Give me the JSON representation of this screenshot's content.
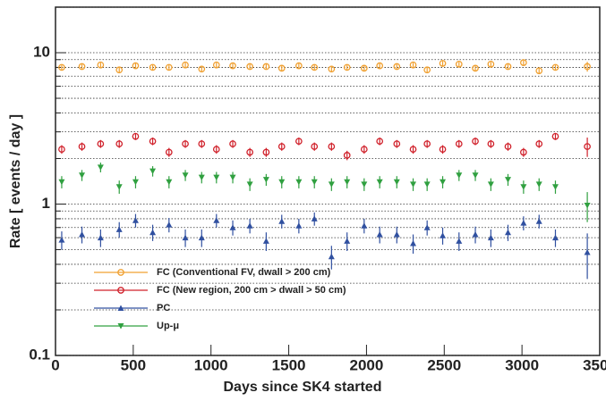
{
  "chart_data": {
    "type": "scatter",
    "x_label": "Days since SK4 started",
    "y_label": "Rate [ events / day ]",
    "log_y": true,
    "grid": true,
    "xlim": [
      0,
      3500
    ],
    "xticks": [
      0,
      500,
      1000,
      1500,
      2000,
      2500,
      3000,
      3500
    ],
    "ylim": [
      0.1,
      20
    ],
    "yticks": [
      0.1,
      1,
      10
    ],
    "minor_yticks": [
      0.2,
      0.3,
      0.4,
      0.5,
      0.6,
      0.7,
      0.8,
      0.9,
      2,
      3,
      4,
      5,
      6,
      7,
      8,
      9,
      20
    ],
    "x": [
      40,
      170,
      290,
      410,
      515,
      625,
      730,
      835,
      940,
      1035,
      1140,
      1250,
      1355,
      1455,
      1565,
      1665,
      1775,
      1875,
      1985,
      2085,
      2195,
      2300,
      2390,
      2490,
      2595,
      2700,
      2800,
      2910,
      3010,
      3110,
      3215,
      3420
    ],
    "series": [
      {
        "name": "FC (Conventional FV, dwall > 200 cm)",
        "color": "#f0a030",
        "marker": "circle-open",
        "values": [
          8.0,
          8.1,
          8.3,
          7.7,
          8.2,
          8.0,
          8.0,
          8.3,
          7.8,
          8.3,
          8.2,
          8.1,
          8.1,
          7.9,
          8.2,
          8.0,
          7.8,
          8.0,
          7.9,
          8.2,
          8.1,
          8.3,
          7.7,
          8.5,
          8.4,
          7.9,
          8.4,
          8.1,
          8.6,
          7.6,
          8.0,
          8.1
        ],
        "errors": [
          0.3,
          0.3,
          0.3,
          0.3,
          0.3,
          0.3,
          0.3,
          0.3,
          0.3,
          0.3,
          0.3,
          0.3,
          0.3,
          0.3,
          0.3,
          0.3,
          0.3,
          0.3,
          0.3,
          0.3,
          0.3,
          0.3,
          0.3,
          0.3,
          0.3,
          0.3,
          0.3,
          0.3,
          0.3,
          0.3,
          0.3,
          0.6
        ]
      },
      {
        "name": "FC (New region, 200 cm > dwall > 50 cm)",
        "color": "#d0202a",
        "marker": "circle-open",
        "values": [
          2.3,
          2.4,
          2.5,
          2.5,
          2.8,
          2.6,
          2.2,
          2.5,
          2.5,
          2.3,
          2.5,
          2.2,
          2.2,
          2.4,
          2.6,
          2.4,
          2.4,
          2.1,
          2.3,
          2.6,
          2.5,
          2.3,
          2.5,
          2.3,
          2.5,
          2.6,
          2.5,
          2.4,
          2.2,
          2.5,
          2.8,
          2.4
        ],
        "errors": [
          0.15,
          0.15,
          0.15,
          0.15,
          0.15,
          0.15,
          0.15,
          0.15,
          0.15,
          0.15,
          0.15,
          0.15,
          0.15,
          0.15,
          0.15,
          0.15,
          0.15,
          0.15,
          0.15,
          0.15,
          0.15,
          0.15,
          0.15,
          0.15,
          0.15,
          0.15,
          0.15,
          0.15,
          0.15,
          0.15,
          0.15,
          0.35
        ]
      },
      {
        "name": "PC",
        "color": "#3050a0",
        "marker": "triangle-up",
        "values": [
          0.58,
          0.63,
          0.6,
          0.68,
          0.78,
          0.65,
          0.73,
          0.6,
          0.6,
          0.78,
          0.7,
          0.72,
          0.57,
          0.77,
          0.72,
          0.8,
          0.45,
          0.57,
          0.72,
          0.63,
          0.63,
          0.55,
          0.7,
          0.62,
          0.57,
          0.63,
          0.6,
          0.65,
          0.75,
          0.77,
          0.6,
          0.48
        ],
        "errors": [
          0.08,
          0.08,
          0.08,
          0.08,
          0.08,
          0.08,
          0.08,
          0.08,
          0.08,
          0.08,
          0.08,
          0.08,
          0.08,
          0.08,
          0.08,
          0.08,
          0.08,
          0.08,
          0.08,
          0.08,
          0.08,
          0.08,
          0.08,
          0.08,
          0.08,
          0.08,
          0.08,
          0.08,
          0.08,
          0.08,
          0.08,
          0.16
        ]
      },
      {
        "name": "Up-μ",
        "color": "#30a040",
        "marker": "triangle-down",
        "values": [
          1.4,
          1.55,
          1.75,
          1.3,
          1.4,
          1.65,
          1.4,
          1.55,
          1.5,
          1.5,
          1.5,
          1.35,
          1.45,
          1.4,
          1.4,
          1.4,
          1.35,
          1.4,
          1.35,
          1.4,
          1.4,
          1.35,
          1.35,
          1.4,
          1.55,
          1.55,
          1.35,
          1.45,
          1.3,
          1.35,
          1.3,
          0.98
        ],
        "errors": [
          0.13,
          0.13,
          0.13,
          0.13,
          0.13,
          0.13,
          0.13,
          0.13,
          0.13,
          0.13,
          0.13,
          0.13,
          0.13,
          0.13,
          0.13,
          0.13,
          0.13,
          0.13,
          0.13,
          0.13,
          0.13,
          0.13,
          0.13,
          0.13,
          0.13,
          0.13,
          0.13,
          0.13,
          0.13,
          0.13,
          0.13,
          0.22
        ]
      }
    ]
  }
}
